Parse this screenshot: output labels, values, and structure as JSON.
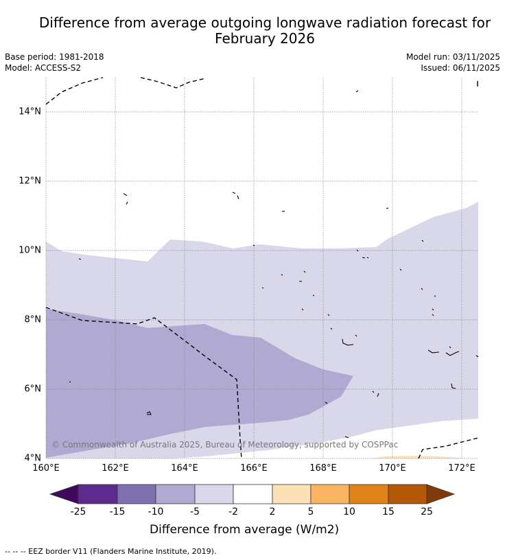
{
  "title_line1": "Difference from average outgoing longwave radiation forecast for",
  "title_line2": "February 2026",
  "meta": {
    "base_period": "Base period: 1981-2018",
    "model": "Model: ACCESS-S2",
    "model_run": "Model run: 03/11/2025",
    "issued": "Issued: 06/11/2025"
  },
  "map": {
    "lat_labels": [
      {
        "value": 14,
        "label": "14°N"
      },
      {
        "value": 12,
        "label": "12°N"
      },
      {
        "value": 10,
        "label": "10°N"
      },
      {
        "value": 8,
        "label": "8°N"
      },
      {
        "value": 6,
        "label": "6°N"
      },
      {
        "value": 4,
        "label": "4°N"
      }
    ],
    "lon_labels": [
      {
        "value": 160,
        "label": "160°E"
      },
      {
        "value": 162,
        "label": "162°E"
      },
      {
        "value": 164,
        "label": "164°E"
      },
      {
        "value": 166,
        "label": "166°E"
      },
      {
        "value": 168,
        "label": "168°E"
      },
      {
        "value": 170,
        "label": "170°E"
      },
      {
        "value": 172,
        "label": "172°E"
      }
    ],
    "copyright": "© Commonwealth of Australia 2025, Bureau of Meteorology, supported by COSPPac"
  },
  "colorbar": {
    "ticks": [
      "-25",
      "-15",
      "-10",
      "-5",
      "-2",
      "2",
      "5",
      "10",
      "15",
      "25"
    ],
    "colors": [
      "#3f0a5e",
      "#5e2a8d",
      "#8070b0",
      "#b0a9d1",
      "#d8d8ea",
      "#ffffff",
      "#fde0b6",
      "#fbb462",
      "#e0821a",
      "#b55806",
      "#7f3b08"
    ],
    "title": "Difference from average (W/m2)"
  },
  "footer": "--  --  -- EEZ border V11 (Flanders Marine Institute, 2019)."
}
